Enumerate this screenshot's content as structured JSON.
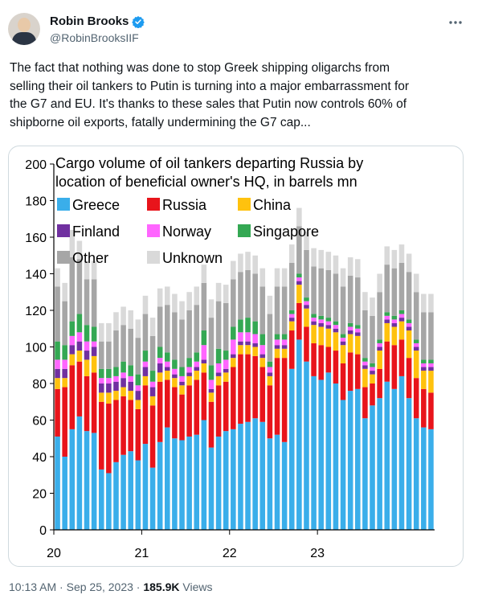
{
  "author": {
    "name": "Robin Brooks",
    "handle": "@RobinBrooksIIF"
  },
  "tweet": {
    "lines": [
      "The fact that nothing was done to stop Greek shipping oligarchs from",
      "selling their oil tankers to Putin is turning into a major embarrassment for",
      "the G7 and EU. It's thanks to these sales that Putin now controls 60% of",
      "shipborne oil exports, fatally undermining the G7 cap..."
    ]
  },
  "meta": {
    "time": "10:13 AM",
    "sep1": "·",
    "date": "Sep 25, 2023",
    "sep2": "·",
    "views": "185.9K",
    "views_label": " Views"
  },
  "icons": {
    "verified": "verified-badge-icon",
    "more": "more-options-icon"
  },
  "chart_data": {
    "type": "bar",
    "stacked": true,
    "title_lines": [
      "Cargo volume of oil tankers departing Russia by",
      "location of beneficial owner's HQ, in barrels mn"
    ],
    "ylim": [
      0,
      200
    ],
    "yticks": [
      0,
      20,
      40,
      60,
      80,
      100,
      120,
      140,
      160,
      180,
      200
    ],
    "xticks": [
      "20",
      "21",
      "22",
      "23"
    ],
    "legend_location": "top-left, inside",
    "series": [
      {
        "name": "Greece",
        "color": "#3aaeea",
        "values": [
          51,
          40,
          55,
          62,
          54,
          53,
          33,
          31,
          37,
          41,
          43,
          38,
          47,
          34,
          48,
          56,
          50,
          49,
          51,
          52,
          60,
          45,
          51,
          54,
          55,
          58,
          59,
          61,
          59,
          50,
          52,
          48,
          88,
          104,
          92,
          84,
          82,
          86,
          80,
          71,
          76,
          77,
          61,
          68,
          72,
          81,
          77,
          84,
          72,
          61,
          56,
          55
        ]
      },
      {
        "name": "Russia",
        "color": "#e8141b",
        "values": [
          26,
          38,
          35,
          30,
          30,
          33,
          37,
          38,
          34,
          32,
          28,
          28,
          32,
          34,
          33,
          26,
          28,
          25,
          28,
          30,
          26,
          25,
          28,
          27,
          34,
          38,
          37,
          34,
          30,
          29,
          42,
          46,
          21,
          20,
          19,
          18,
          19,
          14,
          18,
          20,
          21,
          19,
          17,
          12,
          16,
          22,
          24,
          20,
          22,
          22,
          21,
          20
        ]
      },
      {
        "name": "China",
        "color": "#ffc20e",
        "values": [
          6,
          5,
          6,
          6,
          9,
          9,
          5,
          6,
          5,
          5,
          5,
          5,
          5,
          5,
          5,
          5,
          5,
          5,
          5,
          5,
          5,
          5,
          5,
          5,
          5,
          5,
          5,
          5,
          5,
          5,
          5,
          5,
          5,
          10,
          10,
          10,
          10,
          10,
          10,
          10,
          10,
          10,
          10,
          5,
          10,
          10,
          10,
          10,
          15,
          15,
          10,
          12
        ]
      },
      {
        "name": "Finland",
        "color": "#7030a0",
        "values": [
          5,
          5,
          5,
          5,
          5,
          5,
          5,
          5,
          5,
          5,
          5,
          5,
          5,
          5,
          5,
          2,
          2,
          2,
          2,
          2,
          2,
          2,
          2,
          2,
          2,
          2,
          2,
          2,
          2,
          2,
          2,
          2,
          2,
          2,
          2,
          2,
          2,
          2,
          2,
          2,
          2,
          2,
          2,
          2,
          2,
          2,
          2,
          2,
          2,
          2,
          2,
          2
        ]
      },
      {
        "name": "Norway",
        "color": "#ff66ff",
        "values": [
          5,
          5,
          5,
          5,
          5,
          3,
          3,
          3,
          3,
          3,
          3,
          3,
          3,
          3,
          3,
          3,
          3,
          3,
          3,
          3,
          8,
          5,
          5,
          5,
          8,
          5,
          5,
          5,
          5,
          3,
          3,
          3,
          2,
          2,
          2,
          2,
          2,
          2,
          2,
          2,
          2,
          2,
          2,
          2,
          2,
          2,
          2,
          2,
          2,
          2,
          2,
          2
        ]
      },
      {
        "name": "Singapore",
        "color": "#34a853",
        "values": [
          10,
          8,
          8,
          10,
          9,
          8,
          5,
          5,
          5,
          6,
          6,
          6,
          6,
          6,
          6,
          5,
          5,
          5,
          5,
          5,
          8,
          8,
          8,
          5,
          7,
          7,
          8,
          7,
          6,
          3,
          3,
          3,
          2,
          2,
          2,
          2,
          2,
          2,
          2,
          2,
          2,
          2,
          2,
          2,
          2,
          2,
          2,
          2,
          2,
          2,
          2,
          2
        ]
      },
      {
        "name": "Other",
        "color": "#a6a6a6",
        "values": [
          30,
          24,
          35,
          30,
          25,
          26,
          15,
          15,
          20,
          20,
          20,
          20,
          20,
          19,
          22,
          26,
          26,
          26,
          26,
          26,
          26,
          26,
          26,
          26,
          26,
          26,
          26,
          26,
          26,
          26,
          26,
          26,
          26,
          26,
          26,
          26,
          26,
          26,
          26,
          26,
          26,
          26,
          26,
          26,
          26,
          26,
          26,
          26,
          26,
          26,
          26,
          26
        ]
      },
      {
        "name": "Unknown",
        "color": "#d9d9d9",
        "values": [
          10,
          10,
          15,
          10,
          10,
          10,
          10,
          10,
          10,
          10,
          10,
          10,
          10,
          10,
          10,
          10,
          10,
          10,
          10,
          10,
          10,
          10,
          10,
          10,
          10,
          10,
          10,
          10,
          10,
          10,
          10,
          10,
          10,
          10,
          10,
          10,
          10,
          10,
          10,
          10,
          10,
          10,
          10,
          10,
          10,
          10,
          10,
          10,
          10,
          10,
          10,
          10
        ]
      }
    ]
  }
}
